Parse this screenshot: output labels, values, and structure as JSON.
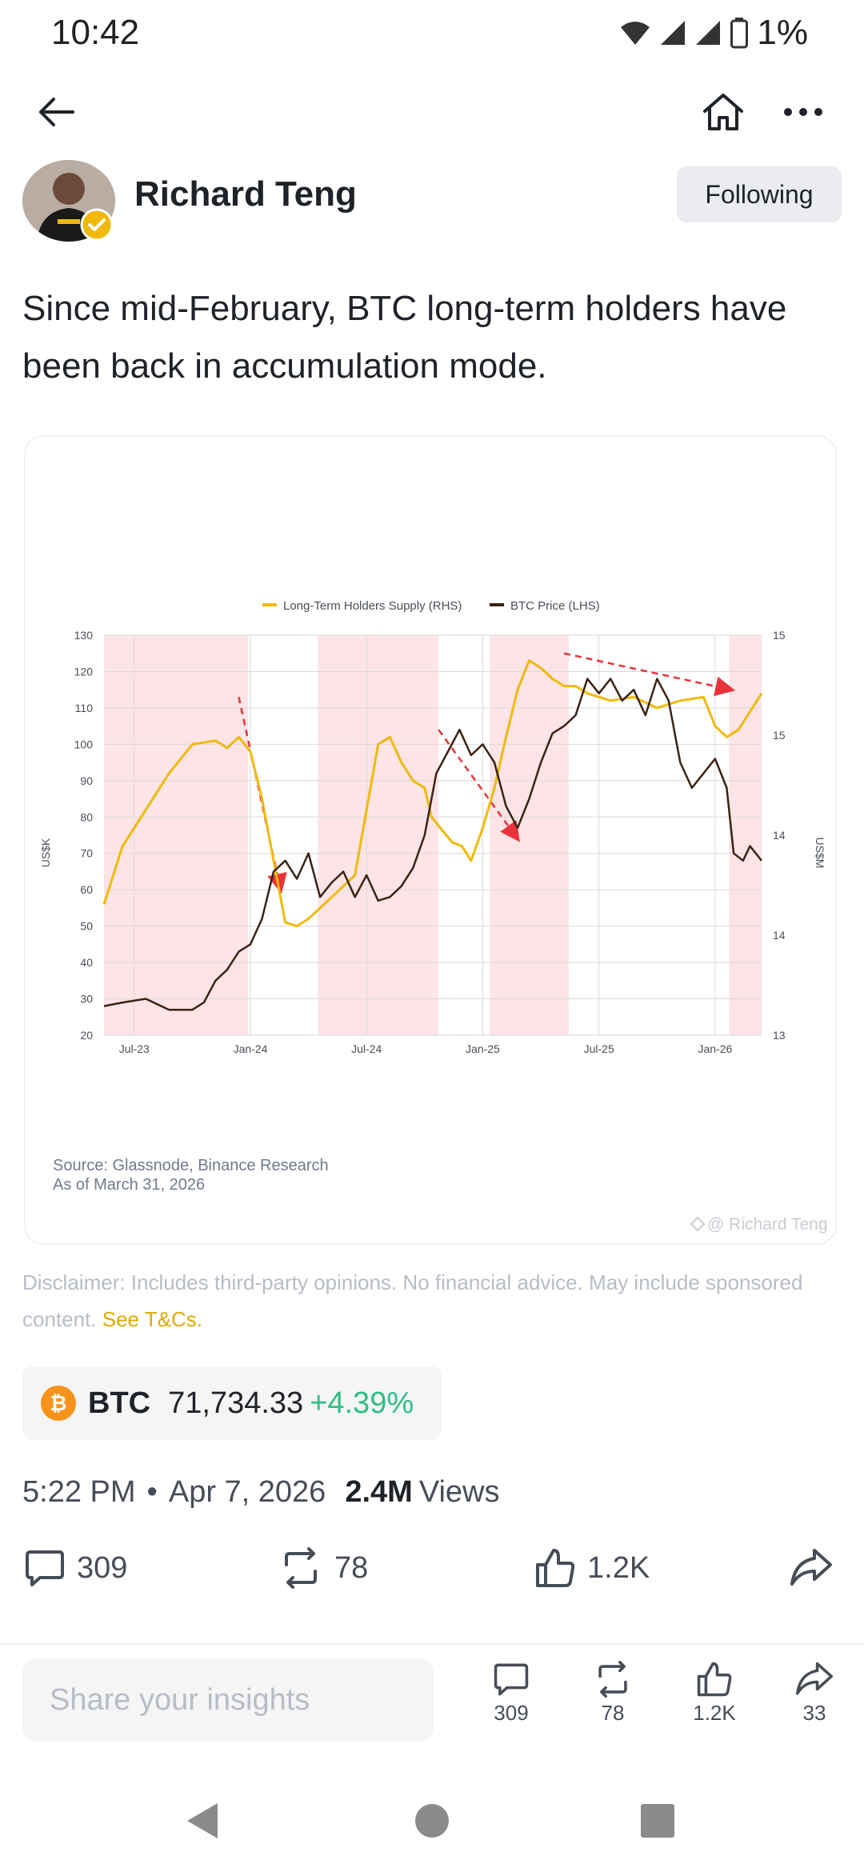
{
  "status_bar": {
    "time": "10:42",
    "battery": "1%"
  },
  "author": {
    "name": "Richard Teng",
    "follow_label": "Following"
  },
  "post": {
    "text": "Since mid-February, BTC long-term holders have been back in accumulation mode."
  },
  "chart_data": {
    "type": "line",
    "legend": [
      "Long-Term Holders Supply (RHS)",
      "BTC Price (LHS)"
    ],
    "x_ticks": [
      "Jul-23",
      "Jan-24",
      "Jul-24",
      "Jan-25",
      "Jul-25",
      "Jan-26"
    ],
    "left_axis": {
      "label": "US$K",
      "ticks": [
        "130",
        "120",
        "110",
        "100",
        "90",
        "80",
        "70",
        "60",
        "50",
        "40",
        "30",
        "20"
      ],
      "ylim": [
        20,
        130
      ]
    },
    "right_axis": {
      "label": "US$M",
      "ticks": [
        "15",
        "15",
        "14",
        "14",
        "13"
      ]
    },
    "x_range": [
      2023.42,
      2026.25
    ],
    "shaded_periods": [
      [
        2023.42,
        2024.04
      ],
      [
        2024.34,
        2024.86
      ],
      [
        2025.08,
        2025.42
      ],
      [
        2026.11,
        2026.25
      ]
    ],
    "series": [
      {
        "name": "Long-Term Holders Supply (RHS)",
        "color": "#f0b90b",
        "x": [
          2023.42,
          2023.5,
          2023.6,
          2023.7,
          2023.8,
          2023.9,
          2023.95,
          2024.0,
          2024.05,
          2024.1,
          2024.15,
          2024.2,
          2024.25,
          2024.3,
          2024.4,
          2024.5,
          2024.6,
          2024.65,
          2024.7,
          2024.75,
          2024.8,
          2024.83,
          2024.88,
          2024.92,
          2024.96,
          2025.0,
          2025.05,
          2025.1,
          2025.15,
          2025.2,
          2025.25,
          2025.3,
          2025.35,
          2025.4,
          2025.45,
          2025.5,
          2025.6,
          2025.7,
          2025.8,
          2025.9,
          2026.0,
          2026.05,
          2026.1,
          2026.15,
          2026.2,
          2026.25
        ],
        "values": [
          56,
          72,
          82,
          92,
          100,
          101,
          99,
          102,
          98,
          85,
          68,
          51,
          50,
          52,
          58,
          64,
          100,
          102,
          95,
          90,
          88,
          80,
          76,
          73,
          72,
          68,
          77,
          88,
          102,
          115,
          123,
          121,
          118,
          116,
          116,
          114,
          112,
          113,
          110,
          112,
          113,
          105,
          102,
          104,
          109,
          114
        ]
      },
      {
        "name": "BTC Price (LHS)",
        "color": "#3b2314",
        "x": [
          2023.42,
          2023.5,
          2023.6,
          2023.7,
          2023.8,
          2023.85,
          2023.9,
          2023.95,
          2024.0,
          2024.05,
          2024.1,
          2024.15,
          2024.2,
          2024.25,
          2024.3,
          2024.35,
          2024.4,
          2024.45,
          2024.5,
          2024.55,
          2024.6,
          2024.65,
          2024.7,
          2024.75,
          2024.8,
          2024.85,
          2024.9,
          2024.95,
          2025.0,
          2025.05,
          2025.1,
          2025.15,
          2025.2,
          2025.25,
          2025.3,
          2025.35,
          2025.4,
          2025.45,
          2025.5,
          2025.55,
          2025.6,
          2025.65,
          2025.7,
          2025.75,
          2025.8,
          2025.85,
          2025.9,
          2025.95,
          2026.0,
          2026.05,
          2026.1,
          2026.13,
          2026.17,
          2026.2,
          2026.25
        ],
        "values": [
          28,
          29,
          30,
          27,
          27,
          29,
          35,
          38,
          43,
          45,
          52,
          65,
          68,
          63,
          70,
          58,
          62,
          65,
          58,
          64,
          57,
          58,
          61,
          66,
          75,
          92,
          98,
          104,
          97,
          100,
          95,
          83,
          77,
          85,
          95,
          103,
          105,
          108,
          118,
          114,
          118,
          112,
          115,
          108,
          118,
          112,
          95,
          88,
          92,
          96,
          88,
          70,
          68,
          72,
          68
        ]
      }
    ],
    "source_line1": "Source: Glassnode, Binance Research",
    "source_line2": "As of March 31, 2026",
    "watermark": "@ Richard Teng"
  },
  "disclaimer": {
    "text": "Disclaimer: Includes third-party opinions. No financial advice. May include sponsored content. ",
    "link": "See T&Cs."
  },
  "coin": {
    "symbol": "BTC",
    "price": "71,734.33",
    "change": "+4.39%"
  },
  "meta": {
    "time": "5:22 PM",
    "dot": "•",
    "date": "Apr 7, 2026",
    "views_count": "2.4M",
    "views_label": "Views"
  },
  "actions": {
    "comments": "309",
    "reposts": "78",
    "likes": "1.2K"
  },
  "reply": {
    "placeholder": "Share your insights"
  },
  "bottom_stats": {
    "comments": "309",
    "reposts": "78",
    "likes": "1.2K",
    "shares": "33"
  },
  "colors": {
    "brand_yellow": "#f0b90b",
    "positive": "#2ebd85",
    "shade": "#fde4e6",
    "arrow_red": "#e8323c"
  }
}
